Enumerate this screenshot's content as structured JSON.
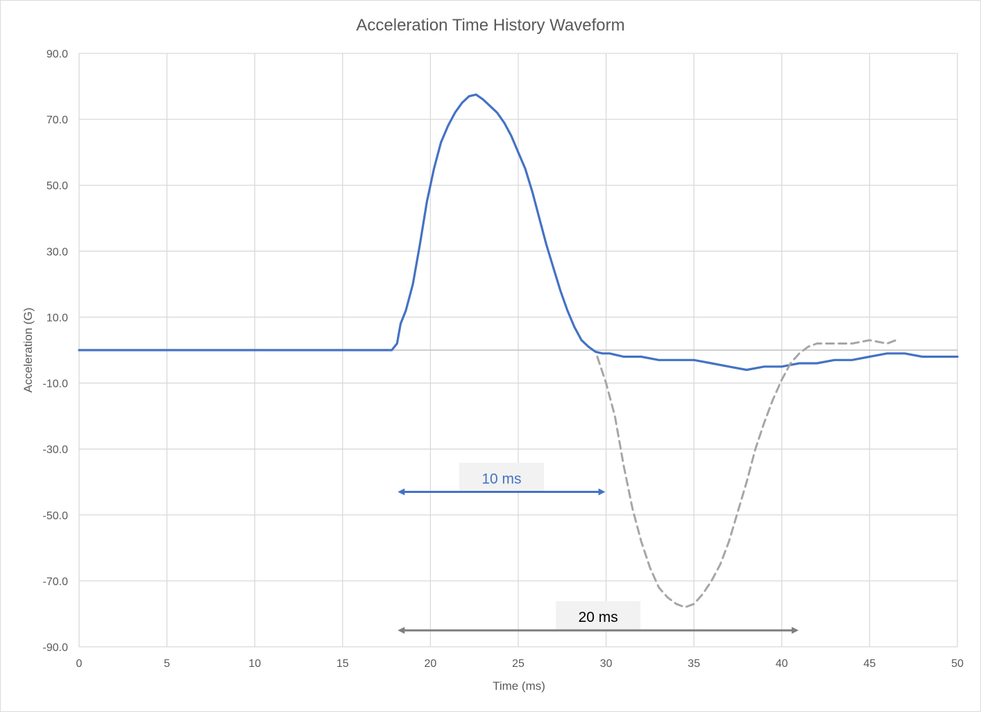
{
  "chart_data": {
    "type": "line",
    "title": "Acceleration Time History Waveform",
    "xlabel": "Time (ms)",
    "ylabel": "Acceleration (G)",
    "xlim": [
      0,
      50
    ],
    "ylim": [
      -90,
      90
    ],
    "x_ticks": [
      "0",
      "5",
      "10",
      "15",
      "20",
      "25",
      "30",
      "35",
      "40",
      "45",
      "50"
    ],
    "y_ticks": [
      "90.0",
      "70.0",
      "50.0",
      "30.0",
      "10.0",
      "-10.0",
      "-30.0",
      "-50.0",
      "-70.0",
      "-90.0"
    ],
    "grid": true,
    "colors": {
      "measured": "#4472c4",
      "reference": "#a6a6a6",
      "arrow_short": "#4472c4",
      "arrow_long": "#7f7f7f"
    },
    "series": [
      {
        "style": "solid",
        "x": [
          0,
          1,
          2,
          3,
          4,
          5,
          6,
          7,
          8,
          9,
          10,
          11,
          12,
          13,
          14,
          15,
          16,
          17,
          17.8,
          18.1,
          18.3,
          18.6,
          19,
          19.4,
          19.8,
          20.2,
          20.6,
          21,
          21.4,
          21.8,
          22.2,
          22.6,
          23,
          23.4,
          23.8,
          24.2,
          24.6,
          25,
          25.4,
          25.8,
          26.2,
          26.6,
          27,
          27.4,
          27.8,
          28.2,
          28.6,
          29,
          29.4,
          29.8,
          30.2,
          31,
          32,
          33,
          34,
          35,
          36,
          37,
          38,
          39,
          40,
          41,
          42,
          43,
          44,
          45,
          46,
          47,
          48,
          49,
          50
        ],
        "y": [
          0,
          0,
          0,
          0,
          0,
          0,
          0,
          0,
          0,
          0,
          0,
          0,
          0,
          0,
          0,
          0,
          0,
          0,
          0,
          2,
          8,
          12,
          20,
          32,
          45,
          55,
          63,
          68,
          72,
          75,
          77,
          77.5,
          76,
          74,
          72,
          69,
          65,
          60,
          55,
          48,
          40,
          32,
          25,
          18,
          12,
          7,
          3,
          1,
          -0.5,
          -1,
          -1,
          -2,
          -2,
          -3,
          -3,
          -3,
          -4,
          -5,
          -6,
          -5,
          -5,
          -4,
          -4,
          -3,
          -3,
          -2,
          -1,
          -1,
          -2,
          -2,
          -2
        ]
      },
      {
        "style": "dashed",
        "x": [
          29.5,
          30,
          30.5,
          31,
          31.5,
          32,
          32.5,
          33,
          33.5,
          34,
          34.5,
          35,
          35.5,
          36,
          36.5,
          37,
          37.5,
          38,
          38.5,
          39,
          39.5,
          40,
          40.5,
          41,
          41.5,
          42,
          43,
          44,
          45,
          46,
          46.5
        ],
        "y": [
          -2,
          -10,
          -20,
          -35,
          -48,
          -58,
          -66,
          -72,
          -75,
          -77,
          -78,
          -77,
          -74,
          -70,
          -65,
          -58,
          -49,
          -40,
          -30,
          -22,
          -15,
          -9,
          -4,
          -1,
          1,
          2,
          2,
          2,
          3,
          2,
          3
        ]
      }
    ],
    "annotations": [
      {
        "label": "10 ms",
        "x_start": 18.1,
        "x_end": 30,
        "y": -43,
        "color": "#4472c4"
      },
      {
        "label": "20 ms",
        "x_start": 18.1,
        "x_end": 41,
        "y": -85,
        "color": "#7f7f7f"
      }
    ]
  }
}
